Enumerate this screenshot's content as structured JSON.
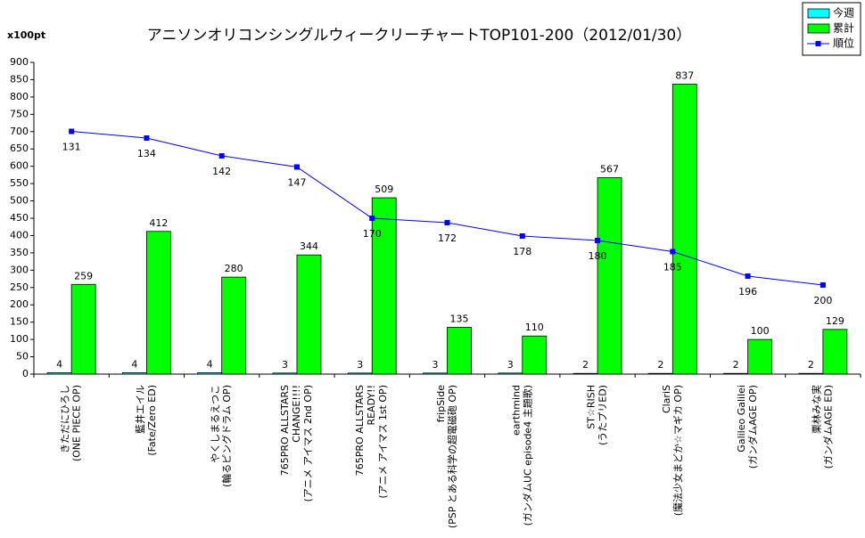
{
  "chart_data": {
    "type": "bar",
    "title": "アニソンオリコンシングルウィークリーチャートTOP101-200（2012/01/30）",
    "y_label": "x100pt",
    "categories": [
      [
        "きただにひろし",
        "(ONE PIECE OP)"
      ],
      [
        "藍井エイル",
        "(Fate/Zero ED)"
      ],
      [
        "やくしまるえつこ",
        "(輪るピングドラム OP)"
      ],
      [
        "765PRO ALLSTARS",
        "CHANGE!!!!",
        "(アニメ アイマス 2nd OP)"
      ],
      [
        "765PRO ALLSTARS",
        "READY!!",
        "(アニメ アイマス 1st OP)"
      ],
      [
        "fripSide",
        "(PSP とある科学の超電磁砲 OP)"
      ],
      [
        "earthmind",
        "(ガンダムUC episode4 主題歌)"
      ],
      [
        "ST☆RISH",
        "(うたプリED)"
      ],
      [
        "ClariS",
        "(魔法少女まどか☆マギカ OP)"
      ],
      [
        "Galileo Galilei",
        "(ガンダムAGE OP)"
      ],
      [
        "栗林みな実",
        "(ガンダムAGE ED)"
      ]
    ],
    "series": [
      {
        "name": "今週",
        "color": "#00ffff",
        "values": [
          4,
          4,
          4,
          3,
          3,
          3,
          3,
          2,
          2,
          2,
          2
        ]
      },
      {
        "name": "累計",
        "color": "#00ff00",
        "values": [
          259,
          412,
          280,
          344,
          509,
          135,
          110,
          567,
          837,
          100,
          129
        ]
      },
      {
        "name": "順位",
        "color": "#0000ff",
        "type": "line",
        "axis": "y2",
        "values": [
          131,
          134,
          142,
          147,
          170,
          172,
          178,
          180,
          185,
          196,
          200
        ]
      }
    ],
    "ylim": [
      0,
      900
    ],
    "yticks": [
      0,
      50,
      100,
      150,
      200,
      250,
      300,
      350,
      400,
      450,
      500,
      550,
      600,
      650,
      700,
      750,
      800,
      850,
      900
    ],
    "y2lim": [
      240,
      100
    ],
    "legend": "top-right"
  }
}
